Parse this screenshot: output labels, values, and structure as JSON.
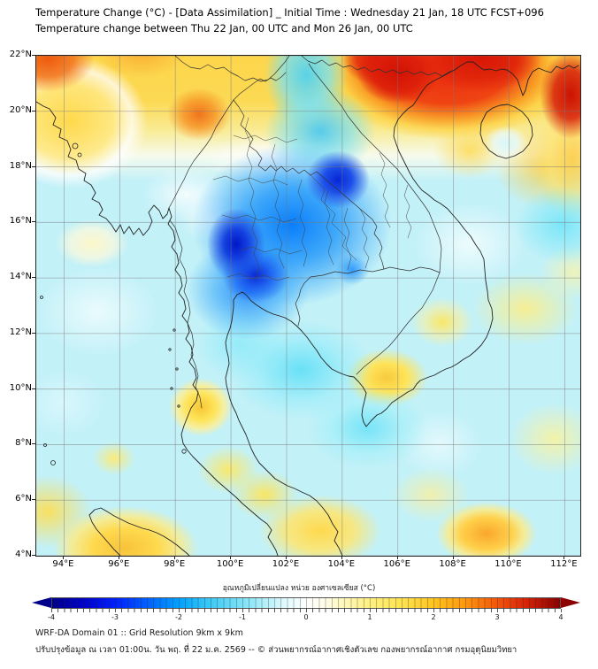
{
  "title": {
    "line1": "Temperature Change (°C) - [Data Assimilation] _ Initial Time : Wednesday 21 Jan, 18 UTC FCST+096",
    "line2": "Temperature change between Thu 22 Jan, 00 UTC and Mon 26 Jan, 00 UTC"
  },
  "map": {
    "lat_ticks": [
      "22°N",
      "20°N",
      "18°N",
      "16°N",
      "14°N",
      "12°N",
      "10°N",
      "8°N",
      "6°N",
      "4°N"
    ],
    "lon_ticks": [
      "94°E",
      "96°E",
      "98°E",
      "100°E",
      "102°E",
      "104°E",
      "106°E",
      "108°E",
      "110°E",
      "112°E"
    ]
  },
  "colorbar": {
    "label": "อุณหภูมิเปลี่ยนแปลง หน่วย องศาเซลเซียส (°C)",
    "ticks": [
      "-4",
      "-3",
      "-2",
      "-1",
      "0",
      "1",
      "2",
      "3",
      "4"
    ],
    "left_arrow_color": "#00008b",
    "right_arrow_color": "#8b0000",
    "gradient": [
      [
        "#00008b",
        "0%"
      ],
      [
        "#0000c8",
        "6%"
      ],
      [
        "#0020ff",
        "12.5%"
      ],
      [
        "#0064ff",
        "19%"
      ],
      [
        "#00a2ff",
        "25%"
      ],
      [
        "#3cc9f5",
        "31%"
      ],
      [
        "#7fe2f7",
        "37.5%"
      ],
      [
        "#b4f0fa",
        "42%"
      ],
      [
        "#e2fbfe",
        "46%"
      ],
      [
        "#ffffff",
        "50%"
      ],
      [
        "#fffce4",
        "54%"
      ],
      [
        "#fff7b4",
        "58%"
      ],
      [
        "#fff080",
        "62.5%"
      ],
      [
        "#ffe24e",
        "69%"
      ],
      [
        "#ffc41f",
        "75%"
      ],
      [
        "#ff9a0e",
        "81%"
      ],
      [
        "#f4560a",
        "87.5%"
      ],
      [
        "#d92508",
        "93%"
      ],
      [
        "#8b0000",
        "100%"
      ]
    ]
  },
  "footer": {
    "line1": "WRF-DA Domain 01 :: Grid Resolution 9km x 9km",
    "line2": "ปรับปรุงข้อมูล ณ เวลา 01:00น. วัน พฤ. ที่ 22 ม.ค. 2569 -- © ส่วนพยากรณ์อากาศเชิงตัวเลข กองพยากรณ์อากาศ กรมอุตุนิยมวิทยา"
  },
  "chart_data": {
    "type": "heatmap",
    "variable": "temperature change",
    "units": "°C",
    "lon_range": [
      93.0,
      112.56
    ],
    "lat_range": [
      4.0,
      22.0
    ],
    "value_range": [
      -4,
      4
    ],
    "anomaly_centers": [
      {
        "lon": 100.3,
        "lat": 15.0,
        "dT": -4.0
      },
      {
        "lon": 103.9,
        "lat": 17.6,
        "dT": -3.5
      },
      {
        "lon": 102.6,
        "lat": 21.3,
        "dT": -1.5
      },
      {
        "lon": 102.5,
        "lat": 10.7,
        "dT": -1.2
      },
      {
        "lon": 111.9,
        "lat": 15.9,
        "dT": -1.0
      },
      {
        "lon": 107.5,
        "lat": 21.6,
        "dT": 4.0
      },
      {
        "lon": 93.5,
        "lat": 21.8,
        "dT": 3.0
      },
      {
        "lon": 98.9,
        "lat": 19.9,
        "dT": 2.5
      },
      {
        "lon": 98.9,
        "lat": 9.4,
        "dT": 1.5
      },
      {
        "lon": 105.6,
        "lat": 10.4,
        "dT": 1.2
      },
      {
        "lon": 109.2,
        "lat": 4.8,
        "dT": 2.0
      },
      {
        "lon": 96.3,
        "lat": 4.4,
        "dT": 1.5
      },
      {
        "lon": 103.2,
        "lat": 4.9,
        "dT": 1.2
      },
      {
        "lon": 111.6,
        "lat": 8.2,
        "dT": 0.8
      },
      {
        "lon": 110.6,
        "lat": 12.9,
        "dT": 0.8
      },
      {
        "lon": 110.0,
        "lat": 18.9,
        "dT": 0.3
      }
    ]
  },
  "field": {
    "base": "#c3f1f8",
    "blobs": [
      {
        "lon": 100.2,
        "lat": 15.2,
        "rx": 1.05,
        "ry": 1.3,
        "stops": [
          [
            "#0018c8",
            "0%"
          ],
          [
            "#1440e0",
            "40%"
          ],
          [
            "rgba(20,80,240,0)",
            "100%"
          ]
        ]
      },
      {
        "lon": 100.9,
        "lat": 14.1,
        "rx": 1.2,
        "ry": 1.0,
        "stops": [
          [
            "#0a2ad4",
            "0%"
          ],
          [
            "rgba(20,80,240,0.7)",
            "50%"
          ],
          [
            "rgba(20,80,240,0)",
            "100%"
          ]
        ]
      },
      {
        "lon": 103.85,
        "lat": 17.55,
        "rx": 1.15,
        "ry": 1.05,
        "stops": [
          [
            "#0726d6",
            "0%"
          ],
          [
            "#1e50e8",
            "45%"
          ],
          [
            "rgba(30,90,240,0)",
            "100%"
          ]
        ]
      },
      {
        "lon": 102.2,
        "lat": 15.9,
        "rx": 3.6,
        "ry": 2.9,
        "stops": [
          [
            "rgba(0,120,250,0.95)",
            "0%"
          ],
          [
            "rgba(30,150,250,0.8)",
            "45%"
          ],
          [
            "rgba(80,190,250,0)",
            "100%"
          ]
        ]
      },
      {
        "lon": 100.6,
        "lat": 13.6,
        "rx": 2.2,
        "ry": 1.8,
        "stops": [
          [
            "rgba(10,120,250,0.8)",
            "0%"
          ],
          [
            "rgba(60,170,250,0.6)",
            "55%"
          ],
          [
            "rgba(80,190,250,0)",
            "100%"
          ]
        ]
      },
      {
        "lon": 104.35,
        "lat": 14.3,
        "rx": 0.6,
        "ry": 0.55,
        "stops": [
          [
            "rgba(30,144,255,0.85)",
            "0%"
          ],
          [
            "rgba(30,144,255,0)",
            "100%"
          ]
        ]
      },
      {
        "lon": 102.7,
        "lat": 21.3,
        "rx": 1.5,
        "ry": 1.9,
        "stops": [
          [
            "rgba(80,210,240,0.95)",
            "0%"
          ],
          [
            "rgba(120,225,245,0.75)",
            "55%"
          ],
          [
            "rgba(150,235,250,0)",
            "100%"
          ]
        ]
      },
      {
        "lon": 103.2,
        "lat": 19.3,
        "rx": 2.0,
        "ry": 1.6,
        "stops": [
          [
            "rgba(70,200,245,0.9)",
            "0%"
          ],
          [
            "rgba(120,225,245,0.6)",
            "60%"
          ],
          [
            "rgba(150,235,250,0)",
            "100%"
          ]
        ]
      },
      {
        "lon": 102.5,
        "lat": 10.7,
        "rx": 2.6,
        "ry": 1.8,
        "stops": [
          [
            "rgba(90,222,246,0.85)",
            "0%"
          ],
          [
            "rgba(140,235,250,0.5)",
            "60%"
          ],
          [
            "rgba(160,240,250,0)",
            "100%"
          ]
        ]
      },
      {
        "lon": 104.9,
        "lat": 8.6,
        "rx": 2.2,
        "ry": 1.5,
        "stops": [
          [
            "rgba(100,225,247,0.8)",
            "0%"
          ],
          [
            "rgba(150,238,250,0.45)",
            "60%"
          ],
          [
            "rgba(160,240,250,0)",
            "100%"
          ]
        ]
      },
      {
        "lon": 100.3,
        "lat": 11.6,
        "rx": 1.6,
        "ry": 1.3,
        "stops": [
          [
            "rgba(130,232,250,0.7)",
            "0%"
          ],
          [
            "rgba(160,240,250,0)",
            "100%"
          ]
        ]
      },
      {
        "lon": 111.9,
        "lat": 15.9,
        "rx": 1.7,
        "ry": 1.4,
        "stops": [
          [
            "rgba(110,228,248,0.85)",
            "0%"
          ],
          [
            "rgba(160,240,250,0)",
            "100%"
          ]
        ]
      },
      {
        "lon": 109.9,
        "lat": 18.85,
        "rx": 0.8,
        "ry": 0.65,
        "stops": [
          [
            "rgba(215,247,252,0.97)",
            "0%"
          ],
          [
            "rgba(232,250,253,0.75)",
            "55%"
          ],
          [
            "rgba(240,252,254,0)",
            "100%"
          ]
        ]
      },
      {
        "lon": 101.2,
        "lat": 18.35,
        "rx": 2.4,
        "ry": 0.8,
        "stops": [
          [
            "rgba(255,255,255,0.85)",
            "0%"
          ],
          [
            "rgba(255,255,255,0)",
            "100%"
          ]
        ]
      },
      {
        "lon": 98.4,
        "lat": 17.0,
        "rx": 1.6,
        "ry": 1.0,
        "stops": [
          [
            "rgba(255,255,255,0.8)",
            "0%"
          ],
          [
            "rgba(255,255,255,0)",
            "100%"
          ]
        ]
      },
      {
        "lon": 99.3,
        "lat": 16.1,
        "rx": 1.2,
        "ry": 0.8,
        "stops": [
          [
            "rgba(255,255,255,0.7)",
            "0%"
          ],
          [
            "rgba(255,255,255,0)",
            "100%"
          ]
        ]
      },
      {
        "lon": 98.85,
        "lat": 19.9,
        "rx": 1.15,
        "ry": 0.95,
        "stops": [
          [
            "#f0741c",
            "0%"
          ],
          [
            "rgba(246,150,40,0.85)",
            "50%"
          ],
          [
            "rgba(250,190,60,0)",
            "100%"
          ]
        ]
      },
      {
        "lon": 93.4,
        "lat": 21.9,
        "rx": 1.7,
        "ry": 1.2,
        "stops": [
          [
            "#ee5a10",
            "0%"
          ],
          [
            "rgba(242,120,30,0.9)",
            "55%"
          ],
          [
            "rgba(250,170,50,0)",
            "100%"
          ]
        ]
      },
      {
        "lon": 96.8,
        "lat": 22.1,
        "rx": 1.6,
        "ry": 0.9,
        "stops": [
          [
            "rgba(247,160,40,0.7)",
            "0%"
          ],
          [
            "rgba(250,190,60,0)",
            "100%"
          ]
        ]
      },
      {
        "lon": 106.0,
        "lat": 21.4,
        "rx": 1.5,
        "ry": 1.1,
        "stops": [
          [
            "#d31205",
            "0%"
          ],
          [
            "rgba(220,30,10,0.9)",
            "60%"
          ],
          [
            "rgba(230,50,15,0)",
            "100%"
          ]
        ]
      },
      {
        "lon": 105.3,
        "lat": 21.9,
        "rx": 1.3,
        "ry": 1.0,
        "stops": [
          [
            "#dd1808",
            "0%"
          ],
          [
            "rgba(225,40,12,0.85)",
            "60%"
          ],
          [
            "rgba(230,50,15,0)",
            "100%"
          ]
        ]
      },
      {
        "lon": 109.0,
        "lat": 22.0,
        "rx": 2.2,
        "ry": 1.3,
        "stops": [
          [
            "#d81505",
            "0%"
          ],
          [
            "rgba(222,35,10,0.9)",
            "60%"
          ],
          [
            "rgba(230,50,15,0)",
            "100%"
          ]
        ]
      },
      {
        "lon": 112.2,
        "lat": 20.6,
        "rx": 1.1,
        "ry": 1.6,
        "stops": [
          [
            "#cc1203",
            "0%"
          ],
          [
            "rgba(215,30,10,0.85)",
            "55%"
          ],
          [
            "rgba(230,50,15,0)",
            "100%"
          ]
        ]
      },
      {
        "lon": 107.8,
        "lat": 21.6,
        "rx": 4.6,
        "ry": 2.6,
        "stops": [
          [
            "rgba(233,35,15,0.97)",
            "0%"
          ],
          [
            "rgba(238,60,15,0.95)",
            "50%"
          ],
          [
            "rgba(248,150,30,0.85)",
            "72%"
          ],
          [
            "rgba(253,210,70,0.75)",
            "86%"
          ],
          [
            "rgba(255,235,130,0)",
            "100%"
          ]
        ]
      },
      {
        "lon": 112.3,
        "lat": 18.3,
        "rx": 1.4,
        "ry": 2.2,
        "stops": [
          [
            "rgba(252,200,60,0.8)",
            "0%"
          ],
          [
            "rgba(255,228,110,0.6)",
            "60%"
          ],
          [
            "rgba(255,240,160,0)",
            "100%"
          ]
        ]
      },
      {
        "lon": 111.3,
        "lat": 18.0,
        "rx": 1.8,
        "ry": 1.5,
        "stops": [
          [
            "rgba(252,205,60,0.8)",
            "0%"
          ],
          [
            "rgba(255,235,130,0)",
            "100%"
          ]
        ]
      },
      {
        "lon": 108.6,
        "lat": 18.6,
        "rx": 1.3,
        "ry": 1.0,
        "stops": [
          [
            "rgba(253,215,75,0.8)",
            "0%"
          ],
          [
            "rgba(255,235,130,0)",
            "100%"
          ]
        ]
      },
      {
        "lon": 98.9,
        "lat": 9.35,
        "rx": 1.15,
        "ry": 1.05,
        "stops": [
          [
            "#f6c635",
            "0%"
          ],
          [
            "#ffe459",
            "45%"
          ],
          [
            "rgba(255,240,150,0.8)",
            "75%"
          ],
          [
            "rgba(255,248,190,0)",
            "100%"
          ]
        ]
      },
      {
        "lon": 99.9,
        "lat": 7.1,
        "rx": 1.1,
        "ry": 0.85,
        "stops": [
          [
            "rgba(255,232,95,0.9)",
            "0%"
          ],
          [
            "rgba(255,245,180,0)",
            "100%"
          ]
        ]
      },
      {
        "lon": 101.2,
        "lat": 6.2,
        "rx": 1.2,
        "ry": 0.9,
        "stops": [
          [
            "rgba(255,228,85,0.9)",
            "0%"
          ],
          [
            "rgba(255,245,180,0)",
            "100%"
          ]
        ]
      },
      {
        "lon": 103.2,
        "lat": 4.9,
        "rx": 2.2,
        "ry": 1.3,
        "stops": [
          [
            "#ffd94e",
            "0%"
          ],
          [
            "rgba(255,230,110,0.85)",
            "55%"
          ],
          [
            "rgba(255,245,180,0)",
            "100%"
          ]
        ]
      },
      {
        "lon": 96.2,
        "lat": 4.3,
        "rx": 2.6,
        "ry": 1.5,
        "stops": [
          [
            "#f7c33a",
            "0%"
          ],
          [
            "#ffd94e",
            "45%"
          ],
          [
            "rgba(255,235,130,0.8)",
            "75%"
          ],
          [
            "rgba(255,248,190,0)",
            "100%"
          ]
        ]
      },
      {
        "lon": 93.4,
        "lat": 5.6,
        "rx": 1.6,
        "ry": 1.3,
        "stops": [
          [
            "rgba(255,222,80,0.9)",
            "0%"
          ],
          [
            "rgba(255,245,180,0)",
            "100%"
          ]
        ]
      },
      {
        "lon": 95.8,
        "lat": 7.5,
        "rx": 0.75,
        "ry": 0.6,
        "stops": [
          [
            "rgba(255,234,110,0.9)",
            "0%"
          ],
          [
            "rgba(255,245,180,0)",
            "100%"
          ]
        ]
      },
      {
        "lon": 105.6,
        "lat": 10.4,
        "rx": 1.5,
        "ry": 1.05,
        "stops": [
          [
            "#f8ca3e",
            "0%"
          ],
          [
            "#ffe45a",
            "50%"
          ],
          [
            "rgba(255,240,150,0)",
            "100%"
          ]
        ]
      },
      {
        "lon": 107.6,
        "lat": 12.4,
        "rx": 1.15,
        "ry": 0.9,
        "stops": [
          [
            "rgba(255,230,90,0.9)",
            "0%"
          ],
          [
            "rgba(255,240,150,0.5)",
            "60%"
          ],
          [
            "rgba(255,248,190,0)",
            "100%"
          ]
        ]
      },
      {
        "lon": 110.6,
        "lat": 12.9,
        "rx": 1.9,
        "ry": 1.3,
        "stops": [
          [
            "rgba(255,238,130,0.85)",
            "0%"
          ],
          [
            "rgba(255,248,190,0)",
            "100%"
          ]
        ]
      },
      {
        "lon": 112.3,
        "lat": 14.2,
        "rx": 1.2,
        "ry": 1.0,
        "stops": [
          [
            "rgba(255,243,160,0.7)",
            "0%"
          ],
          [
            "rgba(255,248,190,0)",
            "100%"
          ]
        ]
      },
      {
        "lon": 109.2,
        "lat": 4.8,
        "rx": 1.8,
        "ry": 1.15,
        "stops": [
          [
            "#f9a72c",
            "0%"
          ],
          [
            "#ffd04a",
            "50%"
          ],
          [
            "rgba(255,235,130,0.8)",
            "75%"
          ],
          [
            "rgba(255,248,190,0)",
            "100%"
          ]
        ]
      },
      {
        "lon": 111.6,
        "lat": 8.2,
        "rx": 1.6,
        "ry": 1.3,
        "stops": [
          [
            "rgba(255,242,150,0.8)",
            "0%"
          ],
          [
            "rgba(255,248,190,0)",
            "100%"
          ]
        ]
      },
      {
        "lon": 107.2,
        "lat": 6.2,
        "rx": 1.4,
        "ry": 1.0,
        "stops": [
          [
            "rgba(255,240,150,0.75)",
            "0%"
          ],
          [
            "rgba(255,248,190,0)",
            "100%"
          ]
        ]
      },
      {
        "lon": 95.0,
        "lat": 15.25,
        "rx": 1.3,
        "ry": 0.85,
        "stops": [
          [
            "rgba(255,247,200,0.95)",
            "0%"
          ],
          [
            "rgba(255,250,220,0.7)",
            "60%"
          ],
          [
            "rgba(255,252,230,0)",
            "100%"
          ]
        ]
      },
      {
        "lon": 95.2,
        "lat": 12.8,
        "rx": 2.2,
        "ry": 1.6,
        "stops": [
          [
            "rgba(238,252,254,0.9)",
            "0%"
          ],
          [
            "rgba(240,252,254,0)",
            "100%"
          ]
        ]
      },
      {
        "lon": 94.0,
        "lat": 9.5,
        "rx": 1.5,
        "ry": 1.2,
        "stops": [
          [
            "rgba(225,250,253,0.7)",
            "0%"
          ],
          [
            "rgba(240,252,254,0)",
            "100%"
          ]
        ]
      },
      {
        "lon": 108.6,
        "lat": 15.2,
        "rx": 2.0,
        "ry": 1.5,
        "stops": [
          [
            "rgba(242,253,254,0.9)",
            "0%"
          ],
          [
            "rgba(240,252,254,0)",
            "100%"
          ]
        ]
      },
      {
        "lon": 107.5,
        "lat": 8.0,
        "rx": 1.5,
        "ry": 1.2,
        "stops": [
          [
            "rgba(235,251,253,0.8)",
            "0%"
          ],
          [
            "rgba(240,252,254,0)",
            "100%"
          ]
        ]
      },
      {
        "lon": 94.2,
        "lat": 19.6,
        "rx": 2.8,
        "ry": 2.4,
        "stops": [
          [
            "rgba(255,216,74,0.95)",
            "0%"
          ],
          [
            "rgba(255,232,130,0.85)",
            "55%"
          ],
          [
            "rgba(255,255,255,0.75)",
            "80%"
          ],
          [
            "rgba(255,255,255,0)",
            "100%"
          ]
        ]
      },
      {
        "linear": true,
        "stops": [
          [
            "rgba(255,213,70,0.97)",
            "0%"
          ],
          [
            "rgba(255,216,74,0.95)",
            "9%"
          ],
          [
            "rgba(255,235,140,0.9)",
            "15%"
          ],
          [
            "rgba(255,252,235,0.85)",
            "20%"
          ],
          [
            "rgba(255,255,255,0)",
            "25%"
          ]
        ]
      }
    ]
  }
}
